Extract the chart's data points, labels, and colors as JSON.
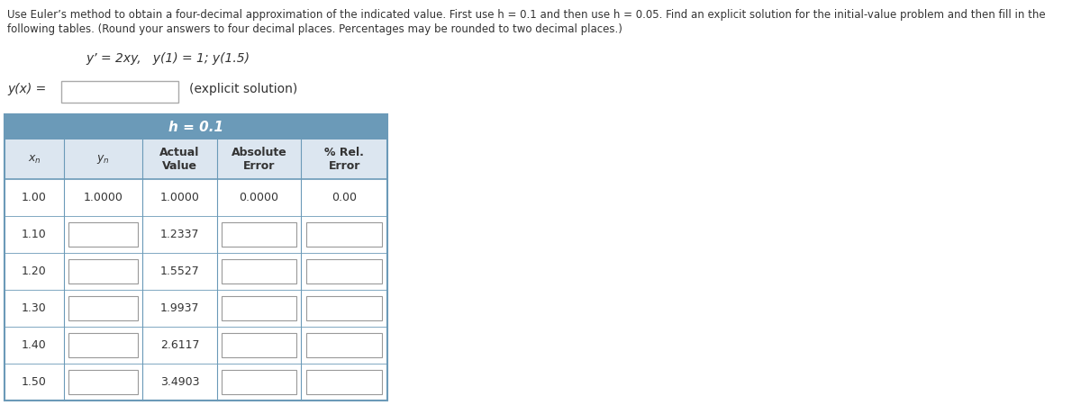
{
  "title_line1": "Use Euler’s method to obtain a four-decimal approximation of the indicated value. First use h = 0.1 and then use h = 0.05. Find an explicit solution for the initial-value problem and then fill in the",
  "title_line2": "following tables. (Round your answers to four decimal places. Percentages may be rounded to two decimal places.)",
  "equation_line": "y’ = 2xy,   y(1) = 1; y(1.5)",
  "yx_label": "y(x) =",
  "explicit_label": "(explicit solution)",
  "header_color": "#6b9ab8",
  "header_text": "h = 0.1",
  "col_headers_line1": [
    "x",
    "y",
    "Actual",
    "Absolute",
    "% Rel."
  ],
  "col_headers_line2": [
    "n",
    "n",
    "Value",
    "Error",
    "Error"
  ],
  "rows": [
    {
      "xn": "1.00",
      "yn": "1.0000",
      "actual": "1.0000",
      "abs_err": "0.0000",
      "rel_err": "0.00",
      "yn_box": false,
      "abs_box": false,
      "rel_box": false
    },
    {
      "xn": "1.10",
      "yn": "",
      "actual": "1.2337",
      "abs_err": "",
      "rel_err": "",
      "yn_box": true,
      "abs_box": true,
      "rel_box": true
    },
    {
      "xn": "1.20",
      "yn": "",
      "actual": "1.5527",
      "abs_err": "",
      "rel_err": "",
      "yn_box": true,
      "abs_box": true,
      "rel_box": true
    },
    {
      "xn": "1.30",
      "yn": "",
      "actual": "1.9937",
      "abs_err": "",
      "rel_err": "",
      "yn_box": true,
      "abs_box": true,
      "rel_box": true
    },
    {
      "xn": "1.40",
      "yn": "",
      "actual": "2.6117",
      "abs_err": "",
      "rel_err": "",
      "yn_box": true,
      "abs_box": true,
      "rel_box": true
    },
    {
      "xn": "1.50",
      "yn": "",
      "actual": "3.4903",
      "abs_err": "",
      "rel_err": "",
      "yn_box": true,
      "abs_box": true,
      "rel_box": true
    }
  ],
  "bg_color": "#ffffff",
  "text_color": "#333333",
  "border_color": "#6b9ab8",
  "subhdr_color": "#dce6f0",
  "input_box_border": "#999999"
}
